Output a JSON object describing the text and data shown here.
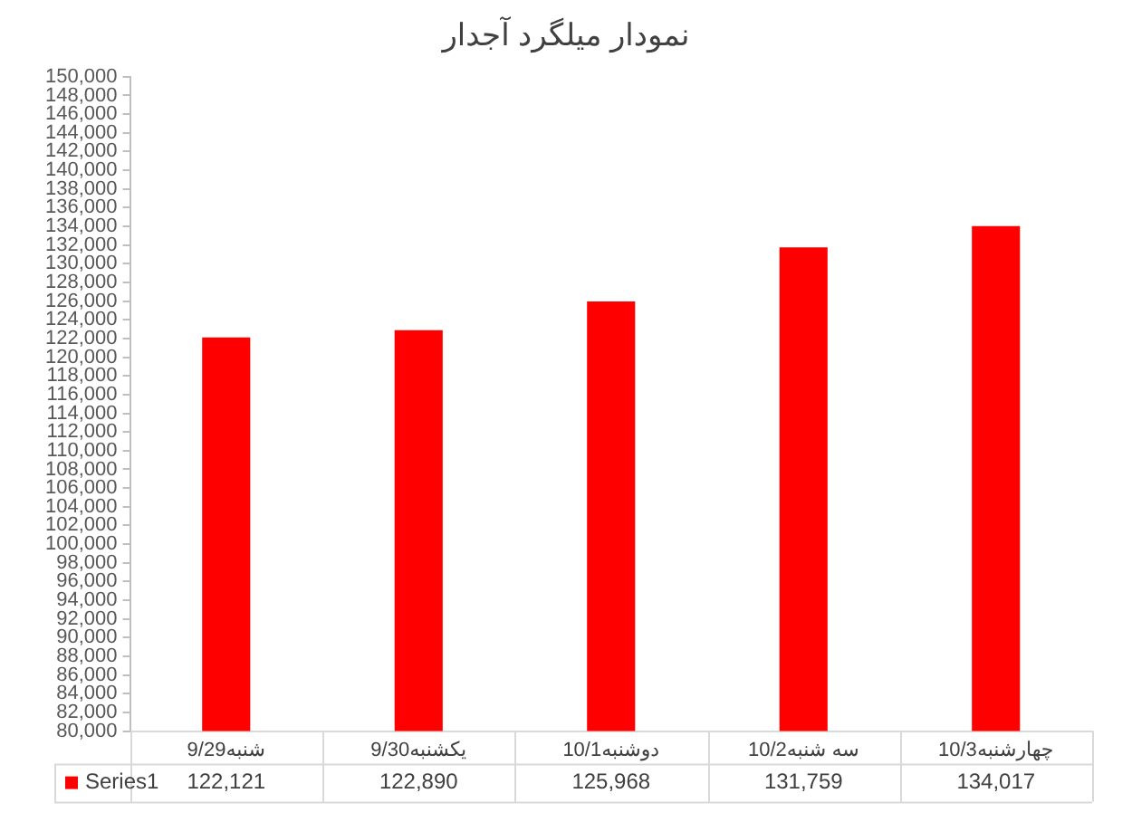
{
  "chart_data": {
    "type": "bar",
    "title": "نمودار میلگرد آجدار",
    "categories": [
      "شنبه9/29",
      "یکشنبه9/30",
      "دوشنبه10/1",
      "سه شنبه10/2",
      "چهارشنبه10/3"
    ],
    "series": [
      {
        "name": "Series1",
        "color": "#ff0000",
        "values": [
          122121,
          122890,
          125968,
          131759,
          134017
        ],
        "value_labels": [
          "122,121",
          "122,890",
          "125,968",
          "131,759",
          "134,017"
        ]
      }
    ],
    "ylim": [
      80000,
      150000
    ],
    "yticks": [
      {
        "value": 80000,
        "label": "80,000"
      },
      {
        "value": 82000,
        "label": "82,000"
      },
      {
        "value": 84000,
        "label": "84,000"
      },
      {
        "value": 86000,
        "label": "86,000"
      },
      {
        "value": 88000,
        "label": "88,000"
      },
      {
        "value": 90000,
        "label": "90,000"
      },
      {
        "value": 92000,
        "label": "92,000"
      },
      {
        "value": 94000,
        "label": "94,000"
      },
      {
        "value": 96000,
        "label": "96,000"
      },
      {
        "value": 98000,
        "label": "98,000"
      },
      {
        "value": 100000,
        "label": "100,000"
      },
      {
        "value": 102000,
        "label": "102,000"
      },
      {
        "value": 104000,
        "label": "104,000"
      },
      {
        "value": 106000,
        "label": "106,000"
      },
      {
        "value": 108000,
        "label": "108,000"
      },
      {
        "value": 110000,
        "label": "110,000"
      },
      {
        "value": 112000,
        "label": "112,000"
      },
      {
        "value": 114000,
        "label": "114,000"
      },
      {
        "value": 116000,
        "label": "116,000"
      },
      {
        "value": 118000,
        "label": "118,000"
      },
      {
        "value": 120000,
        "label": "120,000"
      },
      {
        "value": 122000,
        "label": "122,000"
      },
      {
        "value": 124000,
        "label": "124,000"
      },
      {
        "value": 126000,
        "label": "126,000"
      },
      {
        "value": 128000,
        "label": "128,000"
      },
      {
        "value": 130000,
        "label": "130,000"
      },
      {
        "value": 132000,
        "label": "132,000"
      },
      {
        "value": 134000,
        "label": "134,000"
      },
      {
        "value": 136000,
        "label": "136,000"
      },
      {
        "value": 138000,
        "label": "138,000"
      },
      {
        "value": 140000,
        "label": "140,000"
      },
      {
        "value": 142000,
        "label": "142,000"
      },
      {
        "value": 144000,
        "label": "144,000"
      },
      {
        "value": 146000,
        "label": "146,000"
      },
      {
        "value": 148000,
        "label": "148,000"
      },
      {
        "value": 150000,
        "label": "150,000"
      }
    ],
    "grid": false
  }
}
